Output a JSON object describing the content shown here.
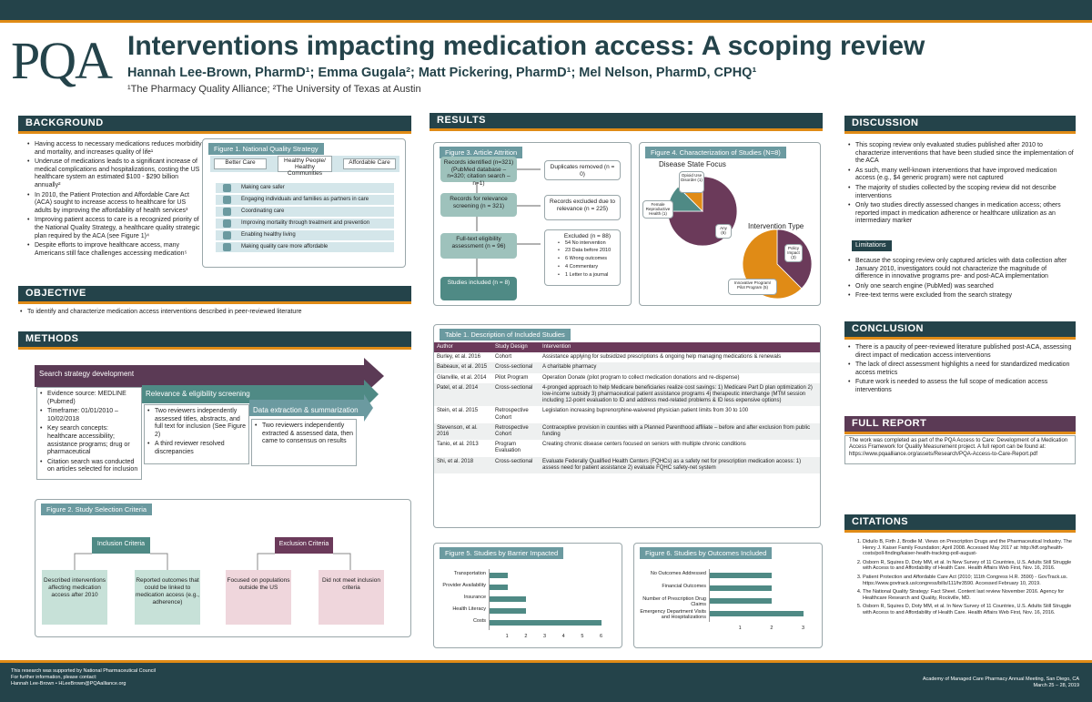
{
  "header": {
    "logo": "PQA",
    "title": "Interventions impacting medication access: A scoping review",
    "authors": "Hannah Lee-Brown, PharmD¹; Emma Gugala²; Matt Pickering, PharmD¹; Mel Nelson, PharmD, CPHQ¹",
    "affiliations": "¹The Pharmacy Quality Alliance; ²The University of Texas at Austin"
  },
  "background": {
    "heading": "BACKGROUND",
    "bullets": [
      "Having access to necessary medications reduces morbidity and mortality, and increases quality of life¹",
      "Underuse of medications leads to a significant increase of medical complications and hospitalizations, costing the US healthcare system an estimated $100 - $290 billion annually²",
      "In 2010, the Patient Protection and Affordable Care Act (ACA) sought to increase access to healthcare for US adults by improving the affordability of health services³",
      "Improving patient access to care is a recognized priority of the National Quality Strategy, a healthcare quality strategic plan required by the ACA (see Figure 1)⁴",
      "Despite efforts to improve healthcare access, many Americans still face challenges accessing medication⁵"
    ]
  },
  "figure1": {
    "title": "Figure 1. National Quality Strategy",
    "heads": [
      "Better Care",
      "Healthy People/ Healthy Communities",
      "Affordable Care"
    ],
    "items": [
      "Making care safer",
      "Engaging individuals and families as partners in care",
      "Coordinating care",
      "Improving mortality through treatment and prevention",
      "Enabling healthy living",
      "Making quality care more affordable"
    ]
  },
  "objective": {
    "heading": "OBJECTIVE",
    "text": "To identify and characterize medication access interventions described in peer-reviewed literature"
  },
  "methods": {
    "heading": "METHODS",
    "step1": "Search strategy development",
    "step2": "Relevance & eligibility screening",
    "step3": "Data extraction & summarization",
    "col1": [
      "Evidence source: MEDLINE (Pubmed)",
      "Timeframe: 01/01/2010 – 10/02/2018",
      "Key search concepts: healthcare accessibility; assistance programs; drug or pharmaceutical",
      "Citation search was conducted on articles selected for inclusion"
    ],
    "col2": [
      "Two reviewers independently assessed titles, abstracts, and full text for inclusion (See Figure 2)",
      "A third reviewer resolved discrepancies"
    ],
    "col3": [
      "Two reviewers independently extracted & assessed data, then came to consensus on results"
    ]
  },
  "figure2": {
    "title": "Figure 2. Study Selection Criteria",
    "inclusion": "Inclusion Criteria",
    "exclusion": "Exclusion Criteria",
    "inc1": "Described interventions affecting medication access after 2010",
    "inc2": "Reported outcomes that could be linked to medication access (e.g., adherence)",
    "exc1": "Focused on populations outside the US",
    "exc2": "Did not meet inclusion criteria"
  },
  "results": {
    "heading": "RESULTS"
  },
  "figure3": {
    "title": "Figure 3. Article Attrition",
    "r1": "Records identified (n=321) (PubMed database – n=320; citation search – n=1)",
    "r2": "Records for relevance screening (n = 321)",
    "r3": "Full-text eligibility assessment (n = 96)",
    "r4": "Studies included (n = 8)",
    "d1": "Duplicates removed (n = 0)",
    "d2": "Records excluded due to relevance (n = 225)",
    "d3": "Excluded (n = 88)",
    "d3list": [
      "54 No intervention",
      "23 Data before 2010",
      "6 Wrong outcomes",
      "4 Commentary",
      "1 Letter to a journal"
    ]
  },
  "figure4": {
    "title": "Figure 4. Characterization of Studies (N=8)",
    "disease": "Disease State Focus",
    "intervention": "Intervention Type",
    "labels": {
      "opioid": "Opioid Use Disorder (1)",
      "female": "Female Reproductive Health (1)",
      "any": "Any (6)",
      "policy": "Policy Impact (3)",
      "innov": "Innovative Program/ Pilot Program (5)"
    }
  },
  "table1": {
    "title": "Table 1. Description of Included Studies",
    "cols": [
      "Author",
      "Study Design",
      "Intervention"
    ],
    "rows": [
      [
        "Burley, et al. 2016",
        "Cohort",
        "Assistance applying for subsidized prescriptions & ongoing help managing medications & renewals"
      ],
      [
        "Babeaux, et al. 2015",
        "Cross-sectional",
        "A charitable pharmacy"
      ],
      [
        "Glanville, et al. 2014",
        "Pilot Program",
        "Operation Donate (pilot program to collect medication donations and re-dispense)"
      ],
      [
        "Patel, et al. 2014",
        "Cross-sectional",
        "4-pronged approach to help Medicare beneficiaries realize cost savings: 1) Medicare Part D plan optimization 2) low-income subsidy 3) pharmaceutical patient assistance programs 4) therapeutic interchange (MTM session including 12-point evaluation to ID and address med-related problems & ID less expensive options)"
      ],
      [
        "Stein, et al. 2015",
        "Retrospective Cohort",
        "Legislation increasing buprenorphine-waivered physician patient limits from 30 to 100"
      ],
      [
        "Stevenson, et al. 2016",
        "Retrospective Cohort",
        "Contraceptive provision in counties with a Planned Parenthood affiliate – before and after exclusion from public funding"
      ],
      [
        "Tanio, et al. 2013",
        "Program Evaluation",
        "Creating chronic disease centers focused on seniors with multiple chronic conditions"
      ],
      [
        "Shi, et al. 2018",
        "Cross-sectional",
        "Evaluate Federally Qualified Health Centers (FQHCs) as a safety net for prescription medication access: 1) assess need for patient assistance 2) evaluate FQHC safety-net system"
      ]
    ]
  },
  "figure5": {
    "title": "Figure 5. Studies by Barrier Impacted",
    "type": "bar",
    "categories": [
      "Transportation",
      "Provider Availability",
      "Insurance",
      "Health Literacy",
      "Costs"
    ],
    "values": [
      1,
      1,
      2,
      2,
      6
    ],
    "ticks": [
      "1",
      "2",
      "3",
      "4",
      "5",
      "6"
    ],
    "xlim": [
      0,
      6
    ]
  },
  "figure6": {
    "title": "Figure 6. Studies by Outcomes Included",
    "type": "bar",
    "categories": [
      "No Outcomes Addressed",
      "Financial Outcomes",
      "Number of Prescription Drug Claims",
      "Emergency Department Visits and Hospitalizations"
    ],
    "values": [
      2,
      2,
      2,
      3
    ],
    "ticks": [
      "1",
      "2",
      "3"
    ],
    "xlim": [
      0,
      3
    ]
  },
  "discussion": {
    "heading": "DISCUSSION",
    "bullets": [
      "This scoping review only evaluated studies published after 2010 to characterize interventions that have been studied since the implementation of the ACA",
      "As such, many well-known interventions that have improved medication access (e.g., $4 generic program) were not captured",
      "The majority of studies collected by the scoping review did not describe interventions",
      "Only two studies directly assessed changes in medication access; others reported impact in medication adherence or healthcare utilization as an intermediary marker"
    ],
    "limitations_label": "Limitations",
    "limitations": [
      "Because the scoping review only captured articles with data collection after January 2010, investigators could not characterize the magnitude of difference in innovative programs pre- and post-ACA implementation",
      "Only one search engine (PubMed) was searched",
      "Free-text terms were excluded from the search strategy"
    ]
  },
  "conclusion": {
    "heading": "CONCLUSION",
    "bullets": [
      "There is a paucity of peer-reviewed literature published post-ACA, assessing direct impact of medication access interventions",
      "The lack of direct assessment highlights a need for standardized medication access metrics",
      "Future work is needed to assess the full scope of medication access interventions"
    ]
  },
  "fullreport": {
    "heading": "FULL REPORT",
    "text": "The work was completed as part of the PQA Access to Care: Development of a Medication Access Framework for Quality Measurement project. A full report can be found at: https://www.pqaalliance.org/assets/Research/PQA-Access-to-Care-Report.pdf"
  },
  "citations": {
    "heading": "CITATIONS",
    "items": [
      "Diduilo B, Firth J, Brodie M. Views on Prescription Drugs and the Pharmaceutical Industry. The Henry J. Kaiser Family Foundation; April 2008. Accessed May 2017 at: http://kff.org/health-costs/poll-finding/kaiser-health-tracking-poll-august-",
      "Osborn R, Squires D, Doty MM, et al. In New Survey of 11 Countries, U.S. Adults Still Struggle with Access to and Affordability of Health Care. Health Affairs Web First, Nov. 16, 2016.",
      "Patient Protection and Affordable Care Act (2010; 111th Congress H.R. 3590) - GovTrack.us. https://www.govtrack.us/congress/bills/111/hr3590. Accessed February 10, 2019.",
      "The National Quality Strategy: Fact Sheet. Content last review November 2016. Agency for Healthcare Research and Quality, Rockville, MD.",
      "Osborn R, Squires D, Doty MM, et al. In New Survey of 11 Countries, U.S. Adults Still Struggle with Access to and Affordability of Health Care. Health Affairs Web First, Nov. 16, 2016."
    ]
  },
  "footer": {
    "left1": "This research was supported by National Pharmaceutical Council",
    "left2": "For further information, please contact:",
    "left3": "Hannah Lee-Brown • HLeeBrown@PQAalliance.org",
    "right1": "Academy of Managed Care Pharmacy Annual Meeting, San Diego, CA",
    "right2": "March 25 – 28, 2019"
  }
}
